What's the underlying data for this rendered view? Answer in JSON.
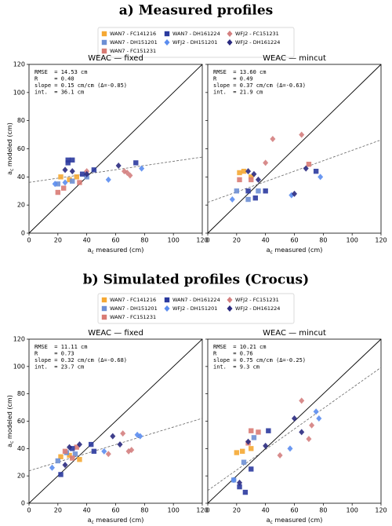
{
  "figure": {
    "sections": [
      {
        "title": "a) Measured profiles"
      },
      {
        "title": "b) Simulated profiles (Crocus)"
      }
    ]
  },
  "chart_data": [
    {
      "type": "scatter",
      "title": "WEAC — fixed",
      "annotations": [
        "RMSE  = 14.53 cm",
        "R     = 0.40",
        "slope = 0.15 cm/cm (Δ=-0.85)",
        "int.  = 36.1 cm"
      ],
      "xlabel": [
        "a",
        "c",
        " measured (cm)"
      ],
      "ylabel": [
        "a",
        "c",
        " modeled (cm)"
      ],
      "xlim": [
        0,
        120
      ],
      "ylim": [
        0,
        120
      ],
      "xticks": [
        0,
        20,
        40,
        60,
        80,
        100,
        120
      ],
      "yticks": [
        0,
        20,
        40,
        60,
        80,
        100,
        120
      ],
      "show_yticklabels": true,
      "fit": {
        "slope": 0.15,
        "intercept": 36.1
      },
      "identity_line": true,
      "series": [
        {
          "name": "WAN7 - FC141216",
          "color": "#f5a833",
          "marker": "square",
          "x": [
            22,
            28,
            33
          ],
          "y": [
            40,
            38,
            40
          ]
        },
        {
          "name": "WAN7 - DH151201",
          "color": "#6d8fd4",
          "marker": "square",
          "x": [
            20,
            30,
            40
          ],
          "y": [
            35,
            37,
            40
          ]
        },
        {
          "name": "WAN7 - FC151231",
          "color": "#d97b74",
          "marker": "square",
          "x": [
            20,
            24,
            35
          ],
          "y": [
            29,
            32,
            36
          ]
        },
        {
          "name": "WAN7 - DH161224",
          "color": "#2b3a9e",
          "marker": "square",
          "x": [
            27,
            27,
            30,
            37,
            45,
            74
          ],
          "y": [
            52,
            50,
            52,
            42,
            45,
            50
          ]
        },
        {
          "name": "WFJ2 - DH151201",
          "color": "#5b8def",
          "marker": "diamond",
          "x": [
            18,
            25,
            55,
            78
          ],
          "y": [
            35,
            36,
            38,
            46
          ]
        },
        {
          "name": "WFJ2 - FC151231",
          "color": "#d48080",
          "marker": "diamond",
          "x": [
            40,
            66,
            70,
            68
          ],
          "y": [
            44,
            44,
            41,
            43
          ]
        },
        {
          "name": "WFJ2 - DH161224",
          "color": "#2a2a80",
          "marker": "diamond",
          "x": [
            25,
            30,
            62,
            40
          ],
          "y": [
            45,
            44,
            48,
            42
          ]
        }
      ]
    },
    {
      "type": "scatter",
      "title": "WEAC — mincut",
      "annotations": [
        "RMSE  = 13.60 cm",
        "R     = 0.49",
        "slope = 0.37 cm/cm (Δ=-0.63)",
        "int.  = 21.9 cm"
      ],
      "xlabel": [
        "a",
        "c",
        " measured (cm)"
      ],
      "xlim": [
        0,
        120
      ],
      "ylim": [
        0,
        120
      ],
      "xticks": [
        0,
        20,
        40,
        60,
        80,
        100,
        120
      ],
      "yticks": [
        0,
        20,
        40,
        60,
        80,
        100,
        120
      ],
      "show_yticklabels": false,
      "fit": {
        "slope": 0.37,
        "intercept": 21.9
      },
      "identity_line": true,
      "series": [
        {
          "name": "WAN7 - FC141216",
          "color": "#f5a833",
          "marker": "square",
          "x": [
            22,
            25,
            30
          ],
          "y": [
            43,
            44,
            40
          ]
        },
        {
          "name": "WAN7 - DH151201",
          "color": "#6d8fd4",
          "marker": "square",
          "x": [
            20,
            28,
            35
          ],
          "y": [
            30,
            24,
            30
          ]
        },
        {
          "name": "WAN7 - FC151231",
          "color": "#d97b74",
          "marker": "square",
          "x": [
            22,
            30,
            70
          ],
          "y": [
            38,
            38,
            49
          ]
        },
        {
          "name": "WAN7 - DH161224",
          "color": "#2b3a9e",
          "marker": "square",
          "x": [
            28,
            33,
            75,
            40
          ],
          "y": [
            30,
            25,
            44,
            30
          ]
        },
        {
          "name": "WFJ2 - DH151201",
          "color": "#5b8def",
          "marker": "diamond",
          "x": [
            17,
            58,
            78
          ],
          "y": [
            24,
            27,
            40
          ]
        },
        {
          "name": "WFJ2 - FC151231",
          "color": "#d48080",
          "marker": "diamond",
          "x": [
            45,
            65,
            40
          ],
          "y": [
            67,
            70,
            50
          ]
        },
        {
          "name": "WFJ2 - DH161224",
          "color": "#2a2a80",
          "marker": "diamond",
          "x": [
            28,
            32,
            60,
            68,
            35
          ],
          "y": [
            44,
            42,
            28,
            46,
            38
          ]
        }
      ]
    },
    {
      "type": "scatter",
      "title": "WEAC — fixed",
      "annotations": [
        "RMSE  = 11.11 cm",
        "R     = 0.73",
        "slope = 0.32 cm/cm (Δ=-0.68)",
        "int.  = 23.7 cm"
      ],
      "xlabel": [
        "a",
        "c",
        " measured (cm)"
      ],
      "ylabel": [
        "a",
        "c",
        " modeled (cm)"
      ],
      "xlim": [
        0,
        120
      ],
      "ylim": [
        0,
        120
      ],
      "xticks": [
        0,
        20,
        40,
        60,
        80,
        100,
        120
      ],
      "yticks": [
        0,
        20,
        40,
        60,
        80,
        100,
        120
      ],
      "show_yticklabels": true,
      "fit": {
        "slope": 0.32,
        "intercept": 23.7
      },
      "identity_line": true,
      "series": [
        {
          "name": "WAN7 - FC141216",
          "color": "#f5a833",
          "marker": "square",
          "x": [
            22,
            28,
            35
          ],
          "y": [
            34,
            35,
            32
          ]
        },
        {
          "name": "WAN7 - DH151201",
          "color": "#6d8fd4",
          "marker": "square",
          "x": [
            20,
            26,
            32
          ],
          "y": [
            31,
            37,
            36
          ]
        },
        {
          "name": "WAN7 - FC151231",
          "color": "#d97b74",
          "marker": "square",
          "x": [
            25,
            33,
            30
          ],
          "y": [
            38,
            41,
            33
          ]
        },
        {
          "name": "WAN7 - DH161224",
          "color": "#2b3a9e",
          "marker": "square",
          "x": [
            22,
            30,
            43,
            45
          ],
          "y": [
            21,
            40,
            43,
            38
          ]
        },
        {
          "name": "WFJ2 - DH151201",
          "color": "#5b8def",
          "marker": "diamond",
          "x": [
            16,
            52,
            77,
            75
          ],
          "y": [
            26,
            38,
            49,
            50
          ]
        },
        {
          "name": "WFJ2 - FC151231",
          "color": "#d48080",
          "marker": "diamond",
          "x": [
            65,
            69,
            71,
            55
          ],
          "y": [
            51,
            38,
            39,
            36
          ]
        },
        {
          "name": "WFJ2 - DH161224",
          "color": "#2a2a80",
          "marker": "diamond",
          "x": [
            28,
            35,
            58,
            63,
            25
          ],
          "y": [
            41,
            43,
            49,
            43,
            28
          ]
        }
      ]
    },
    {
      "type": "scatter",
      "title": "WEAC — mincut",
      "annotations": [
        "RMSE  = 10.21 cm",
        "R     = 0.76",
        "slope = 0.75 cm/cm (Δ=-0.25)",
        "int.  = 9.3 cm"
      ],
      "xlabel": [
        "a",
        "c",
        " measured (cm)"
      ],
      "xlim": [
        0,
        120
      ],
      "ylim": [
        0,
        120
      ],
      "xticks": [
        0,
        20,
        40,
        60,
        80,
        100,
        120
      ],
      "yticks": [
        0,
        20,
        40,
        60,
        80,
        100,
        120
      ],
      "show_yticklabels": false,
      "fit": {
        "slope": 0.75,
        "intercept": 9.3
      },
      "identity_line": true,
      "series": [
        {
          "name": "WAN7 - FC141216",
          "color": "#f5a833",
          "marker": "square",
          "x": [
            20,
            24,
            30
          ],
          "y": [
            37,
            38,
            40
          ]
        },
        {
          "name": "WAN7 - DH151201",
          "color": "#6d8fd4",
          "marker": "square",
          "x": [
            18,
            25,
            32
          ],
          "y": [
            17,
            30,
            48
          ]
        },
        {
          "name": "WAN7 - FC151231",
          "color": "#d97b74",
          "marker": "square",
          "x": [
            30,
            35,
            28
          ],
          "y": [
            53,
            52,
            44
          ]
        },
        {
          "name": "WAN7 - DH161224",
          "color": "#2b3a9e",
          "marker": "square",
          "x": [
            26,
            22,
            42,
            30
          ],
          "y": [
            8,
            12,
            53,
            25
          ]
        },
        {
          "name": "WFJ2 - DH151201",
          "color": "#5b8def",
          "marker": "diamond",
          "x": [
            18,
            57,
            75,
            77
          ],
          "y": [
            17,
            40,
            67,
            62
          ]
        },
        {
          "name": "WFJ2 - FC151231",
          "color": "#d48080",
          "marker": "diamond",
          "x": [
            65,
            70,
            72,
            50
          ],
          "y": [
            75,
            47,
            57,
            35
          ]
        },
        {
          "name": "WFJ2 - DH161224",
          "color": "#2a2a80",
          "marker": "diamond",
          "x": [
            28,
            40,
            60,
            65,
            22
          ],
          "y": [
            45,
            42,
            62,
            52,
            15
          ]
        }
      ]
    }
  ]
}
